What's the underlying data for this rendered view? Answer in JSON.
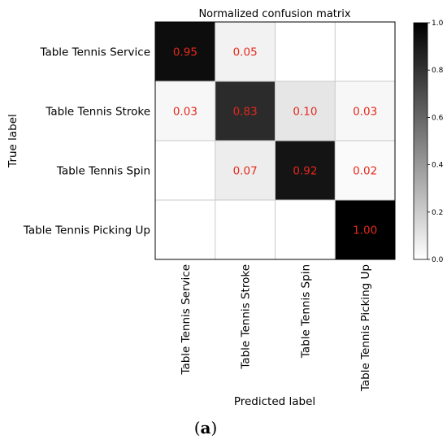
{
  "chart_data": {
    "type": "heatmap",
    "title": "Normalized confusion matrix",
    "xlabel": "Predicted label",
    "ylabel": "True label",
    "x_categories": [
      "Table Tennis Service",
      "Table Tennis Stroke",
      "Table Tennis Spin",
      "Table Tennis Picking Up"
    ],
    "y_categories": [
      "Table Tennis Service",
      "Table Tennis Stroke",
      "Table Tennis Spin",
      "Table Tennis Picking Up"
    ],
    "values": [
      [
        0.95,
        0.05,
        0.0,
        0.0
      ],
      [
        0.03,
        0.83,
        0.1,
        0.03
      ],
      [
        0.0,
        0.07,
        0.92,
        0.02
      ],
      [
        0.0,
        0.0,
        0.0,
        1.0
      ]
    ],
    "cell_labels": [
      [
        "0.95",
        "0.05",
        "",
        ""
      ],
      [
        "0.03",
        "0.83",
        "0.10",
        "0.03"
      ],
      [
        "",
        "0.07",
        "0.92",
        "0.02"
      ],
      [
        "",
        "",
        "",
        "1.00"
      ]
    ],
    "colormap": "greys",
    "value_text_color": "#e32a1d",
    "colorbar": {
      "range": [
        0.0,
        1.0
      ],
      "ticks": [
        "0.0",
        "0.2",
        "0.4",
        "0.6",
        "0.8",
        "1.0"
      ]
    }
  },
  "caption": {
    "open": "(",
    "letter": "a",
    "close": ")"
  }
}
